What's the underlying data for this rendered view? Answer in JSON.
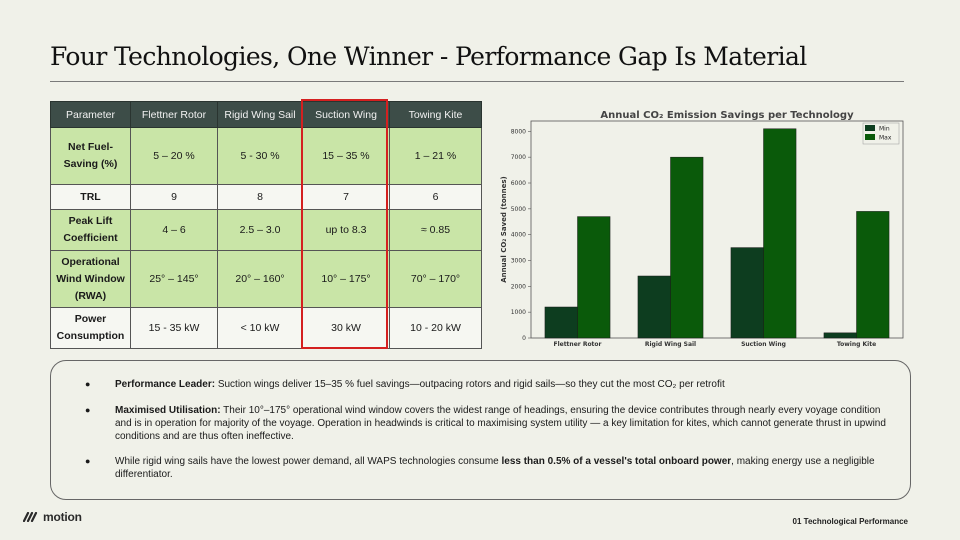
{
  "slide": {
    "title": "Four Technologies, One Winner - Performance Gap Is Material",
    "footer": "01 Technological Performance",
    "logo_text": "motion"
  },
  "table": {
    "headers": [
      "Parameter",
      "Flettner Rotor",
      "Rigid Wing Sail",
      "Suction Wing",
      "Towing Kite"
    ],
    "rows": [
      {
        "param": "Net Fuel-Saving (%)",
        "values": [
          "5 – 20 %",
          "5 - 30 %",
          "15 – 35 %",
          "1 – 21 %"
        ]
      },
      {
        "param": "TRL",
        "values": [
          "9",
          "8",
          "7",
          "6"
        ]
      },
      {
        "param": "Peak Lift Coefficient",
        "values": [
          "4 – 6",
          "2.5 – 3.0",
          "up to 8.3",
          "≈ 0.85"
        ]
      },
      {
        "param": "Operational Wind Window (RWA)",
        "values": [
          "25° – 145°",
          "20° – 160°",
          "10° – 175°",
          "70° – 170°"
        ]
      },
      {
        "param": "Power Consumption",
        "values": [
          "15 - 35 kW",
          "< 10 kW",
          "30 kW",
          "10 - 20 kW"
        ]
      }
    ],
    "highlight_color": "#d42020"
  },
  "chart_data": {
    "type": "bar",
    "title": "Annual CO₂ Emission Savings per Technology",
    "xlabel": "",
    "ylabel": "Annual CO₂ Saved (tonnes)",
    "categories": [
      "Flettner Rotor",
      "Rigid Wing Sail",
      "Suction Wing",
      "Towing Kite"
    ],
    "series": [
      {
        "name": "Min",
        "values": [
          1200,
          2400,
          3500,
          200
        ],
        "color": "#0d3d1f"
      },
      {
        "name": "Max",
        "values": [
          4700,
          7000,
          8100,
          4900
        ],
        "color": "#0a5a0a"
      }
    ],
    "ylim": [
      0,
      8400
    ],
    "yticks": [
      0,
      1000,
      2000,
      3000,
      4000,
      5000,
      6000,
      7000,
      8000
    ],
    "legend": "top-right",
    "grid": false
  },
  "bullets": [
    {
      "bold": "Performance Leader:",
      "text": " Suction wings deliver 15–35 % fuel savings—outpacing rotors and rigid sails—so they cut the most CO₂ per retrofit",
      "bold2": "",
      "text2": ""
    },
    {
      "bold": "Maximised Utilisation:",
      "text": " Their 10°–175° operational wind window covers the widest range of headings, ensuring the device contributes through nearly every voyage condition and is in operation for majority of the voyage. Operation in headwinds is critical to maximising system utility — a key limitation for kites, which cannot generate thrust in upwind conditions and are thus often ineffective.",
      "bold2": "",
      "text2": ""
    },
    {
      "bold": "",
      "text": "While rigid wing sails have the lowest power demand, all WAPS technologies consume ",
      "bold2": "less than 0.5% of a vessel's total onboard power",
      "text2": ", making energy use a negligible differentiator."
    }
  ]
}
